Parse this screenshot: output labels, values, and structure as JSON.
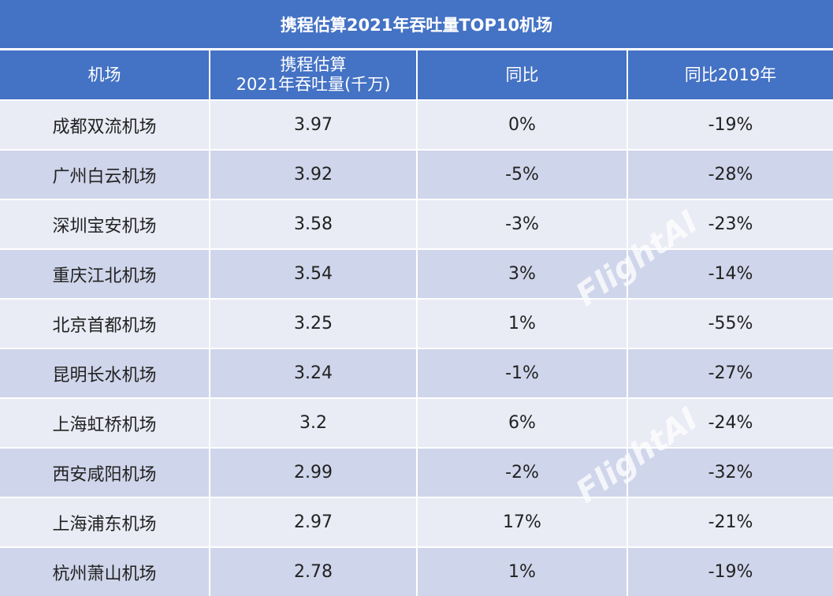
{
  "title": "携程估算2021年吞吐量TOP10机场",
  "table": {
    "header": [
      "机场",
      "携程估算\n2021年吞吐量(千万)",
      "同比",
      "同比2019年"
    ],
    "rows": [
      [
        "成都双流机场",
        "3.97",
        "0%",
        "-19%"
      ],
      [
        "广州白云机场",
        "3.92",
        "-5%",
        "-28%"
      ],
      [
        "深圳宝安机场",
        "3.58",
        "-3%",
        "-23%"
      ],
      [
        "重庆江北机场",
        "3.54",
        "3%",
        "-14%"
      ],
      [
        "北京首都机场",
        "3.25",
        "1%",
        "-55%"
      ],
      [
        "昆明长水机场",
        "3.24",
        "-1%",
        "-27%"
      ],
      [
        "上海虹桥机场",
        "3.2",
        "6%",
        "-24%"
      ],
      [
        "西安咸阳机场",
        "2.99",
        "-2%",
        "-32%"
      ],
      [
        "上海浦东机场",
        "2.97",
        "17%",
        "-21%"
      ],
      [
        "杭州萧山机场",
        "2.78",
        "1%",
        "-19%"
      ]
    ]
  },
  "watermarks": [
    "FlightAI",
    "FlightAI"
  ]
}
